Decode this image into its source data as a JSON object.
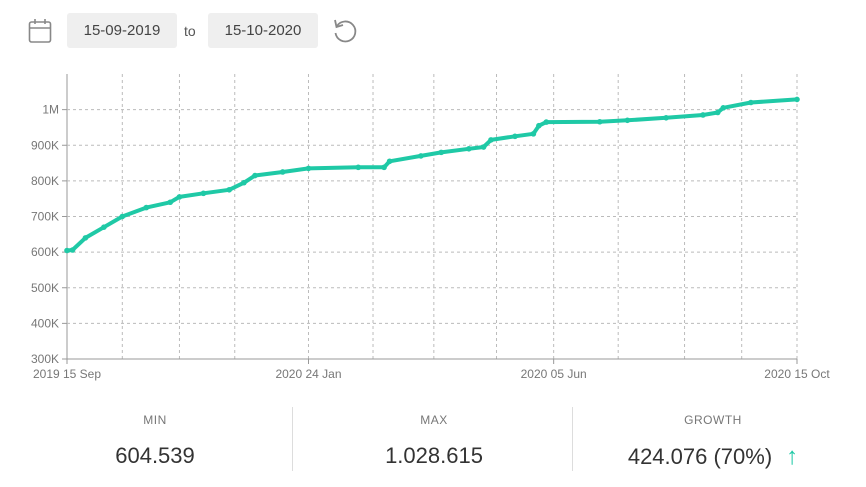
{
  "toolbar": {
    "from_date": "15-09-2019",
    "to_label": "to",
    "to_date": "15-10-2020",
    "icons": [
      "calendar-icon",
      "reset-icon"
    ]
  },
  "colors": {
    "series": "#1fc9a6",
    "grid": "#bbbbbb",
    "axis_text": "#777777"
  },
  "chart_data": {
    "type": "line",
    "xlabel": "",
    "ylabel": "",
    "x_ticks": [
      "2019 15 Sep",
      "2020 24 Jan",
      "2020 05 Jun",
      "2020 15 Oct"
    ],
    "y_ticks": [
      "300K",
      "400K",
      "500K",
      "600K",
      "700K",
      "800K",
      "900K",
      "1M"
    ],
    "ylim": [
      300000,
      1100000
    ],
    "xlim": [
      "2019-09-15",
      "2020-10-15"
    ],
    "grid": true,
    "legend": "none",
    "series": [
      {
        "values": [
          [
            "2019-09-15",
            604539
          ],
          [
            "2019-09-18",
            606000
          ],
          [
            "2019-09-25",
            640000
          ],
          [
            "2019-10-05",
            670000
          ],
          [
            "2019-10-15",
            700000
          ],
          [
            "2019-10-28",
            725000
          ],
          [
            "2019-11-10",
            740000
          ],
          [
            "2019-11-15",
            755000
          ],
          [
            "2019-11-28",
            765000
          ],
          [
            "2019-12-12",
            775000
          ],
          [
            "2019-12-20",
            795000
          ],
          [
            "2019-12-26",
            815000
          ],
          [
            "2020-01-10",
            825000
          ],
          [
            "2020-01-24",
            835000
          ],
          [
            "2020-02-20",
            838000
          ],
          [
            "2020-03-05",
            838000
          ],
          [
            "2020-03-08",
            855000
          ],
          [
            "2020-03-25",
            870000
          ],
          [
            "2020-04-05",
            880000
          ],
          [
            "2020-04-20",
            890000
          ],
          [
            "2020-04-28",
            895000
          ],
          [
            "2020-05-02",
            915000
          ],
          [
            "2020-05-15",
            925000
          ],
          [
            "2020-05-25",
            932000
          ],
          [
            "2020-05-28",
            955000
          ],
          [
            "2020-06-01",
            965000
          ],
          [
            "2020-06-30",
            966000
          ],
          [
            "2020-07-15",
            970000
          ],
          [
            "2020-08-05",
            977000
          ],
          [
            "2020-08-25",
            985000
          ],
          [
            "2020-09-02",
            992000
          ],
          [
            "2020-09-05",
            1005000
          ],
          [
            "2020-09-20",
            1020000
          ],
          [
            "2020-10-15",
            1028615
          ]
        ]
      }
    ]
  },
  "stats": [
    {
      "label": "MIN",
      "value": "604.539"
    },
    {
      "label": "MAX",
      "value": "1.028.615"
    },
    {
      "label": "GROWTH",
      "value": "424.076 (70%)",
      "trend": "up"
    }
  ]
}
